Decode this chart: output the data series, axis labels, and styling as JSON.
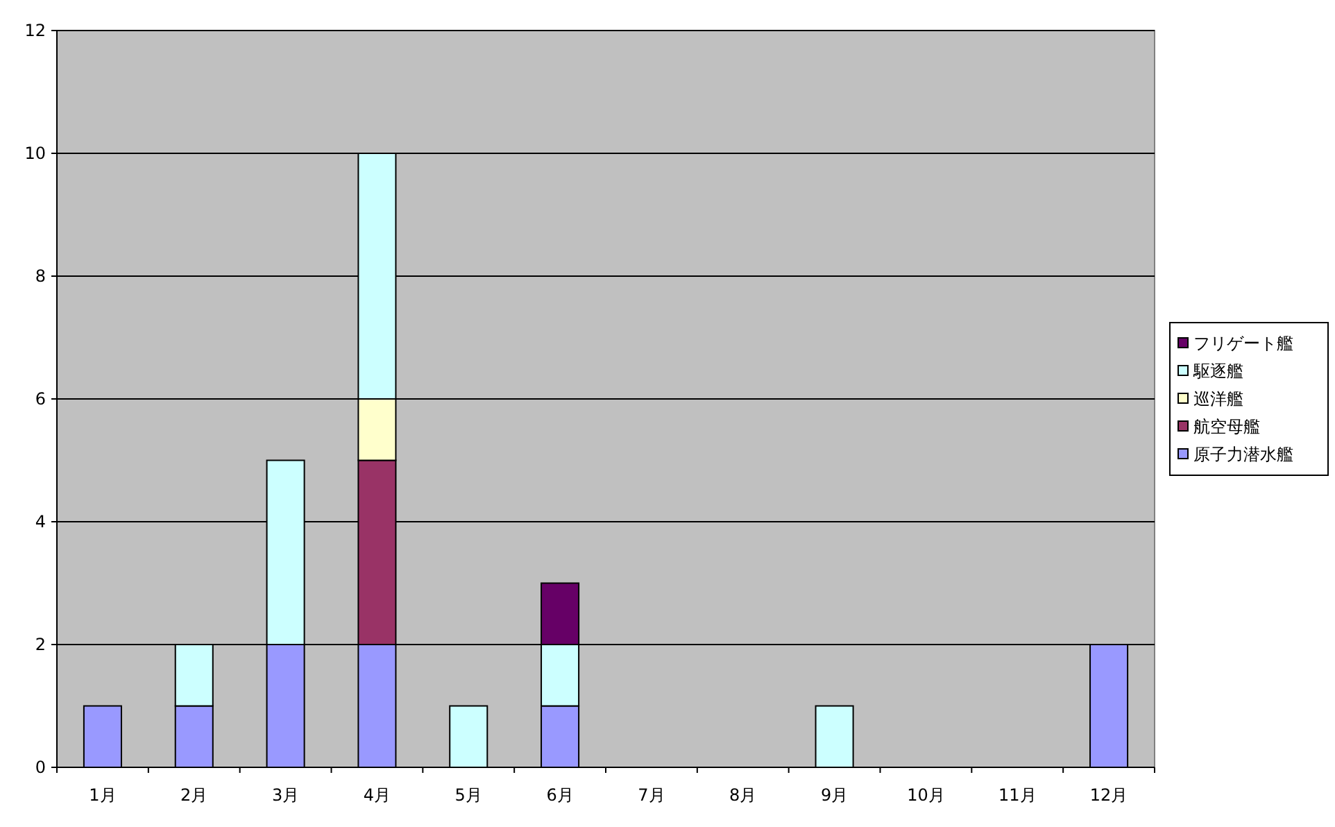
{
  "chart_data": {
    "type": "bar",
    "stacked": true,
    "categories": [
      "1月",
      "2月",
      "3月",
      "4月",
      "5月",
      "6月",
      "7月",
      "8月",
      "9月",
      "10月",
      "11月",
      "12月"
    ],
    "series": [
      {
        "name": "原子力潜水艦",
        "color": "#9999ff",
        "values": [
          1,
          1,
          2,
          2,
          0,
          1,
          0,
          0,
          0,
          0,
          0,
          2
        ]
      },
      {
        "name": "航空母艦",
        "color": "#993366",
        "values": [
          0,
          0,
          0,
          3,
          0,
          0,
          0,
          0,
          0,
          0,
          0,
          0
        ]
      },
      {
        "name": "巡洋艦",
        "color": "#ffffcc",
        "values": [
          0,
          0,
          0,
          1,
          0,
          0,
          0,
          0,
          0,
          0,
          0,
          0
        ]
      },
      {
        "name": "駆逐艦",
        "color": "#ccffff",
        "values": [
          0,
          1,
          3,
          4,
          1,
          1,
          0,
          0,
          1,
          0,
          0,
          0
        ]
      },
      {
        "name": "フリゲート艦",
        "color": "#660066",
        "values": [
          0,
          0,
          0,
          0,
          0,
          1,
          0,
          0,
          0,
          0,
          0,
          0
        ]
      }
    ],
    "ylim": [
      0,
      12
    ],
    "yticks": [
      0,
      2,
      4,
      6,
      8,
      10,
      12
    ],
    "grid": "y",
    "legend": "right"
  }
}
